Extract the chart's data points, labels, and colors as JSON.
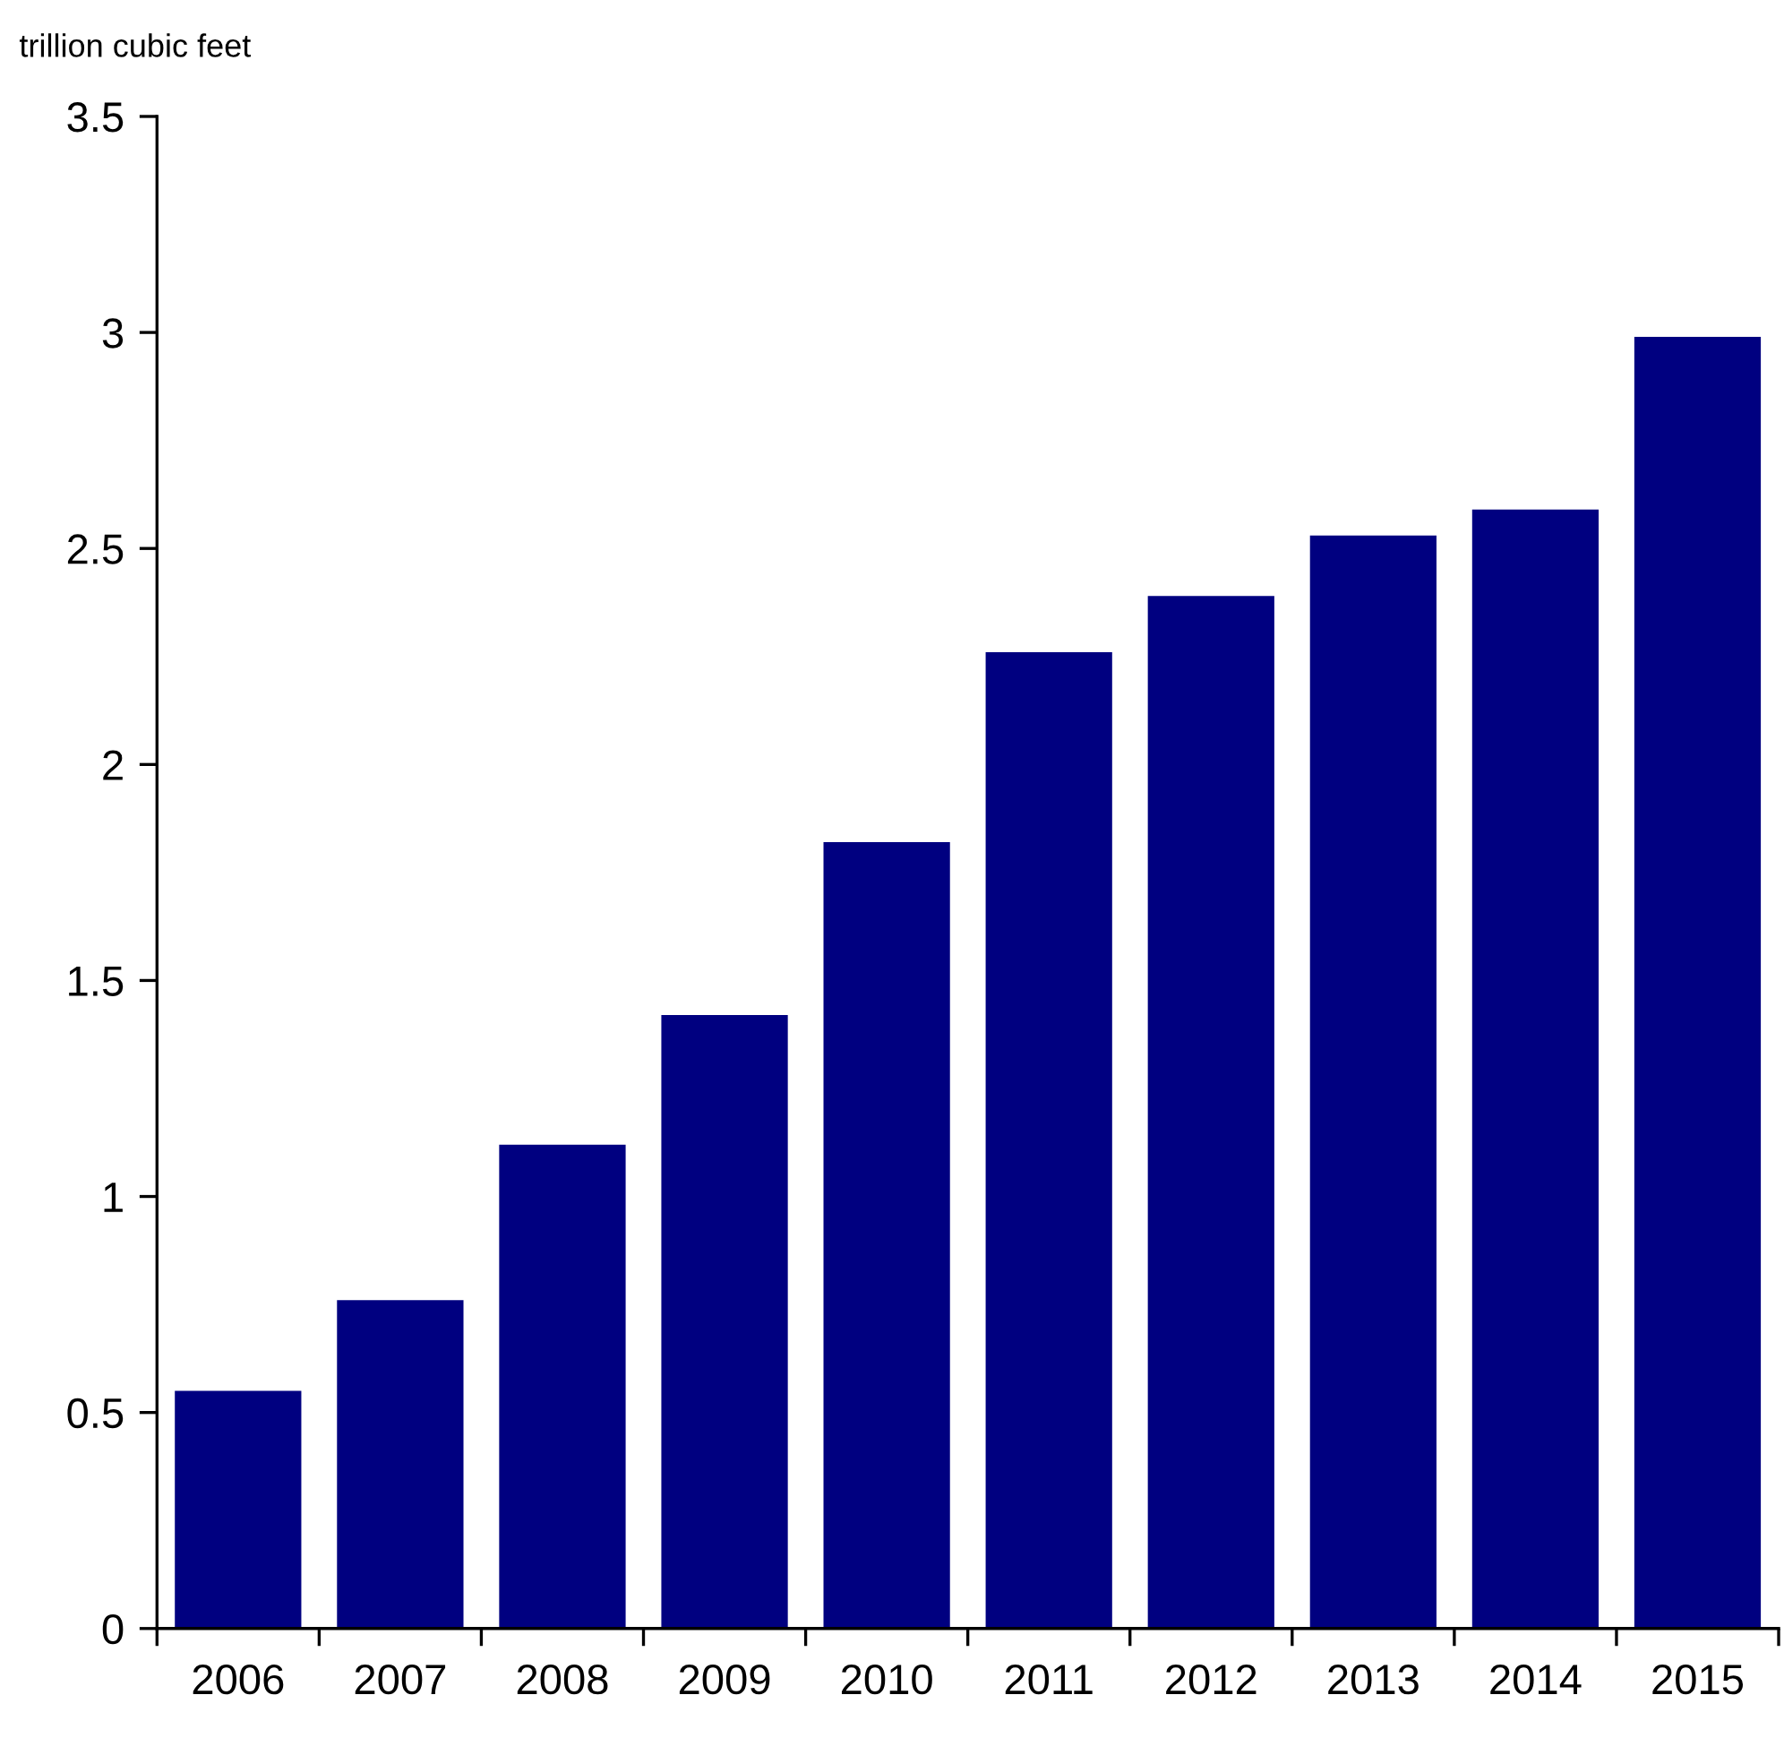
{
  "chart_data": {
    "type": "bar",
    "ylabel": "trillion cubic feet",
    "categories": [
      "2006",
      "2007",
      "2008",
      "2009",
      "2010",
      "2011",
      "2012",
      "2013",
      "2014",
      "2015"
    ],
    "values": [
      0.55,
      0.76,
      1.12,
      1.42,
      1.82,
      2.26,
      2.39,
      2.53,
      2.59,
      2.99
    ],
    "color": "#000080",
    "ylim": [
      0,
      3.5
    ],
    "yticks": [
      0,
      0.5,
      1,
      1.5,
      2,
      2.5,
      3,
      3.5
    ],
    "grid": false
  }
}
